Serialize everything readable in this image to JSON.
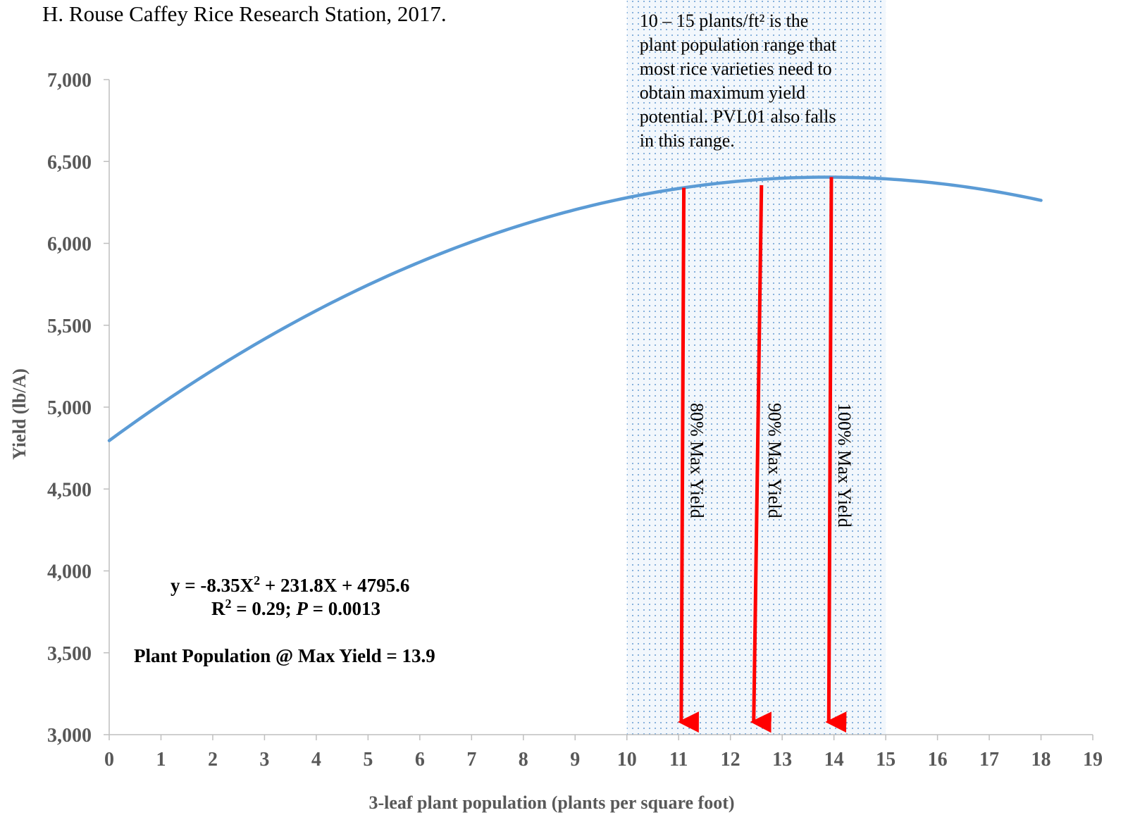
{
  "chart_data": {
    "type": "line",
    "title": "H. Rouse Caffey Rice Research Station, 2017.",
    "xlabel": "3-leaf plant population (plants per square foot)",
    "ylabel": "Yield (lb/A)",
    "xlim": [
      0,
      19
    ],
    "ylim": [
      3000,
      7000
    ],
    "x_ticks": [
      "0",
      "1",
      "2",
      "3",
      "4",
      "5",
      "6",
      "7",
      "8",
      "9",
      "10",
      "11",
      "12",
      "13",
      "14",
      "15",
      "16",
      "17",
      "18",
      "19"
    ],
    "y_ticks": [
      "3,000",
      "3,500",
      "4,000",
      "4,500",
      "5,000",
      "5,500",
      "6,000",
      "6,500",
      "7,000"
    ],
    "series": [
      {
        "equation": {
          "a": -8.35,
          "b": 231.8,
          "c": 4795.6
        },
        "x_range": [
          0,
          18
        ],
        "color": "#5b9bd5"
      }
    ],
    "shaded_region": {
      "x_range": [
        10,
        15
      ],
      "text_lines": [
        "10 – 15 plants/ft² is the",
        "plant population range that",
        "most rice varieties need to",
        "obtain maximum yield",
        "potential. PVL01 also falls",
        "in this range."
      ],
      "color": "#d9e8f7"
    },
    "arrows": [
      {
        "label": "80% Max Yield",
        "x_top": 11.1,
        "x_bottom": 11.05,
        "y_top": 6340,
        "color": "#ff0000"
      },
      {
        "label": "90% Max Yield",
        "x_top": 12.6,
        "x_bottom": 12.45,
        "y_top": 6355,
        "color": "#ff0000"
      },
      {
        "label": "100% Max Yield",
        "x_top": 13.95,
        "x_bottom": 13.9,
        "y_top": 6405,
        "color": "#ff0000"
      }
    ],
    "annotations": {
      "equation_prefix": "y = -8.35X",
      "equation_sup": "2",
      "equation_suffix": " + 231.8X + 4795.6",
      "r2_prefix": "R",
      "r2_sup": "2",
      "r2_middle": " = 0.29; ",
      "r2_p": "P",
      "r2_suffix": " = 0.0013",
      "max_yield": "Plant Population @ Max Yield = 13.9"
    },
    "grid": false,
    "legend": "none"
  }
}
